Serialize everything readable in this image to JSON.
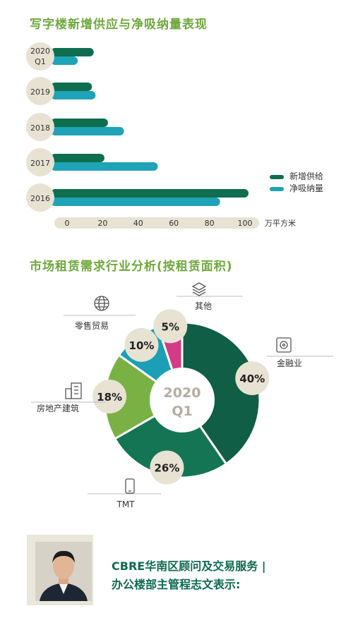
{
  "section1": {
    "title": "写字楼新增供应与净吸纳量表现"
  },
  "section2": {
    "title": "市场租赁需求行业分析(按租赁面积)"
  },
  "colors": {
    "supply": "#0f6e4f",
    "absorption": "#1fa3b6",
    "axis_bar": "#e7e2d2",
    "title": "#6ea83c"
  },
  "chart_data": [
    {
      "type": "bar",
      "orientation": "horizontal",
      "categories": [
        [
          "2020",
          "Q1"
        ],
        [
          "2019"
        ],
        [
          "2018"
        ],
        [
          "2017"
        ],
        [
          "2016"
        ]
      ],
      "series": [
        {
          "name": "新增供给",
          "values": [
            15,
            14,
            23,
            21,
            102
          ]
        },
        {
          "name": "净吸纳量",
          "values": [
            6,
            16,
            32,
            51,
            86
          ]
        }
      ],
      "xticks": [
        "0",
        "20",
        "40",
        "60",
        "80",
        "100"
      ],
      "xlim": [
        0,
        100
      ],
      "unit": "万平方米",
      "legend": "right"
    },
    {
      "type": "pie",
      "center_label": [
        "2020",
        "Q1"
      ],
      "slices": [
        {
          "label": "金融业",
          "value": 40,
          "display": "40%",
          "color": "#105e45",
          "icon": "safe-icon"
        },
        {
          "label": "TMT",
          "value": 26,
          "display": "26%",
          "color": "#137554",
          "icon": "phone-icon"
        },
        {
          "label": "房地产建筑",
          "value": 18,
          "display": "18%",
          "color": "#79b145",
          "icon": "building-icon"
        },
        {
          "label": "零售贸易",
          "value": 10,
          "display": "10%",
          "color": "#1b9fb5",
          "icon": "globe-icon"
        },
        {
          "label": "其他",
          "value": 5,
          "display": "5%",
          "color": "#d33b86",
          "icon": "layers-icon"
        }
      ]
    }
  ],
  "quote": {
    "line1": "CBRE华南区顾问及交易服务 |",
    "line2": "办公楼部主管程志文表示:"
  }
}
